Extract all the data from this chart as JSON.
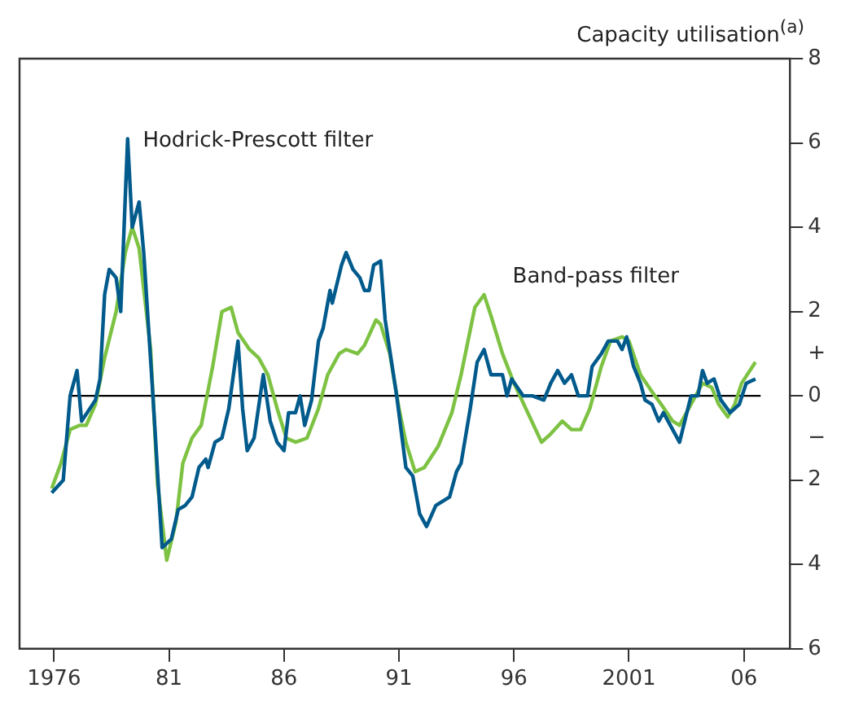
{
  "chart_data": {
    "type": "line",
    "ylabel": "Capacity utilisation$^{(a)}$",
    "xlim": [
      1974.5,
      2008
    ],
    "xticks": [
      1976,
      {
        "value": 1981,
        "label": "81"
      },
      {
        "value": 1986,
        "label": "86"
      },
      {
        "value": 1991,
        "label": "91"
      },
      {
        "value": 1996,
        "label": "96"
      },
      {
        "value": 2001,
        "label": "2001"
      },
      {
        "value": 2006,
        "label": "06"
      }
    ],
    "ylim": [
      -6,
      8
    ],
    "yticks": [
      8,
      6,
      4,
      2,
      {
        "value": 1,
        "label": "+"
      },
      0,
      {
        "value": -1,
        "label": "−"
      },
      {
        "value": -2,
        "label": "2"
      },
      {
        "value": -4,
        "label": "4"
      },
      {
        "value": -6,
        "label": "6"
      }
    ],
    "grid": false,
    "legend": false,
    "marker": "none",
    "line_style": "solid",
    "ref_lines": [
      {
        "axis": "y",
        "value": 0,
        "color": "#000000"
      }
    ],
    "series": [
      {
        "name": "Hodrick-Prescott filter",
        "color": "#005a8c",
        "x": [
          1975.9,
          1976.4,
          1976.7,
          1977.0,
          1977.2,
          1977.8,
          1978.0,
          1978.2,
          1978.4,
          1978.7,
          1978.9,
          1979.2,
          1979.4,
          1979.7,
          1979.9,
          1980.3,
          1980.7,
          1981.1,
          1981.4,
          1981.7,
          1982.0,
          1982.3,
          1982.6,
          1982.7,
          1983.0,
          1983.3,
          1983.6,
          1984.0,
          1984.2,
          1984.4,
          1984.7,
          1985.1,
          1985.4,
          1985.7,
          1986.0,
          1986.2,
          1986.5,
          1986.7,
          1986.9,
          1987.2,
          1987.5,
          1987.7,
          1988.0,
          1988.1,
          1988.5,
          1988.7,
          1989.0,
          1989.3,
          1989.5,
          1989.7,
          1989.9,
          1990.2,
          1990.4,
          1990.9,
          1991.3,
          1991.6,
          1991.9,
          1992.2,
          1992.6,
          1993.2,
          1993.5,
          1993.7,
          1994.1,
          1994.4,
          1994.7,
          1995.0,
          1995.5,
          1995.7,
          1995.9,
          1996.4,
          1996.8,
          1997.3,
          1997.6,
          1997.9,
          1998.2,
          1998.5,
          1998.8,
          1999.2,
          1999.4,
          1999.8,
          2000.1,
          2000.5,
          2000.7,
          2000.9,
          2001.2,
          2001.5,
          2001.7,
          2002.0,
          2002.3,
          2002.5,
          2002.8,
          2003.2,
          2003.7,
          2004.0,
          2004.2,
          2004.4,
          2004.7,
          2005.0,
          2005.4,
          2005.8,
          2006.1,
          2006.5
        ],
        "values": [
          -2.3,
          -2.0,
          0.0,
          0.6,
          -0.6,
          -0.1,
          0.4,
          2.4,
          3.0,
          2.8,
          2.0,
          6.1,
          4.0,
          4.6,
          3.4,
          0.0,
          -3.6,
          -3.4,
          -2.7,
          -2.6,
          -2.4,
          -1.7,
          -1.5,
          -1.7,
          -1.1,
          -1.0,
          -0.3,
          1.3,
          -0.3,
          -1.3,
          -1.0,
          0.5,
          -0.6,
          -1.1,
          -1.3,
          -0.4,
          -0.4,
          0.0,
          -0.7,
          -0.1,
          1.3,
          1.6,
          2.5,
          2.2,
          3.1,
          3.4,
          3.0,
          2.8,
          2.5,
          2.5,
          3.1,
          3.2,
          1.8,
          0.0,
          -1.7,
          -1.9,
          -2.8,
          -3.1,
          -2.6,
          -2.4,
          -1.8,
          -1.6,
          -0.3,
          0.8,
          1.1,
          0.5,
          0.5,
          0.0,
          0.4,
          0.0,
          0.0,
          -0.1,
          0.3,
          0.6,
          0.3,
          0.5,
          0.0,
          0.0,
          0.7,
          1.0,
          1.3,
          1.3,
          1.1,
          1.4,
          0.7,
          0.3,
          -0.1,
          -0.2,
          -0.6,
          -0.4,
          -0.7,
          -1.1,
          0.0,
          0.0,
          0.6,
          0.3,
          0.4,
          -0.1,
          -0.4,
          -0.2,
          0.3,
          0.4
        ]
      },
      {
        "name": "Band-pass filter",
        "color": "#7dc242",
        "x": [
          1975.9,
          1976.3,
          1976.7,
          1977.1,
          1977.4,
          1977.8,
          1978.2,
          1978.7,
          1979.1,
          1979.4,
          1979.7,
          1980.2,
          1980.5,
          1980.9,
          1981.3,
          1981.6,
          1982.0,
          1982.4,
          1982.9,
          1983.3,
          1983.7,
          1984.0,
          1984.5,
          1984.9,
          1985.3,
          1985.7,
          1986.1,
          1986.5,
          1987.0,
          1987.5,
          1987.9,
          1988.4,
          1988.7,
          1989.2,
          1989.5,
          1990.0,
          1990.2,
          1990.6,
          1991.0,
          1991.3,
          1991.7,
          1992.1,
          1992.7,
          1993.3,
          1993.7,
          1994.3,
          1994.7,
          1995.0,
          1995.5,
          1996.0,
          1996.6,
          1997.2,
          1997.6,
          1998.1,
          1998.5,
          1998.9,
          1999.3,
          1999.8,
          2000.2,
          2000.7,
          2001.0,
          2001.5,
          2002.0,
          2002.4,
          2002.9,
          2003.2,
          2003.7,
          2004.2,
          2004.6,
          2004.9,
          2005.3,
          2005.6,
          2005.9,
          2006.5
        ],
        "values": [
          -2.2,
          -1.6,
          -0.8,
          -0.7,
          -0.7,
          -0.2,
          0.9,
          2.0,
          3.4,
          4.0,
          3.5,
          1.1,
          -2.1,
          -3.9,
          -3.0,
          -1.6,
          -1.0,
          -0.7,
          0.7,
          2.0,
          2.1,
          1.5,
          1.1,
          0.9,
          0.5,
          -0.3,
          -1.0,
          -1.1,
          -1.0,
          -0.3,
          0.5,
          1.0,
          1.1,
          1.0,
          1.2,
          1.8,
          1.7,
          1.0,
          -0.3,
          -1.1,
          -1.8,
          -1.7,
          -1.2,
          -0.4,
          0.5,
          2.1,
          2.4,
          1.9,
          1.0,
          0.3,
          -0.4,
          -1.1,
          -0.9,
          -0.6,
          -0.8,
          -0.8,
          -0.3,
          0.7,
          1.3,
          1.4,
          1.3,
          0.5,
          0.1,
          -0.2,
          -0.6,
          -0.7,
          -0.2,
          0.3,
          0.2,
          -0.2,
          -0.5,
          -0.2,
          0.3,
          0.8
        ]
      }
    ]
  }
}
